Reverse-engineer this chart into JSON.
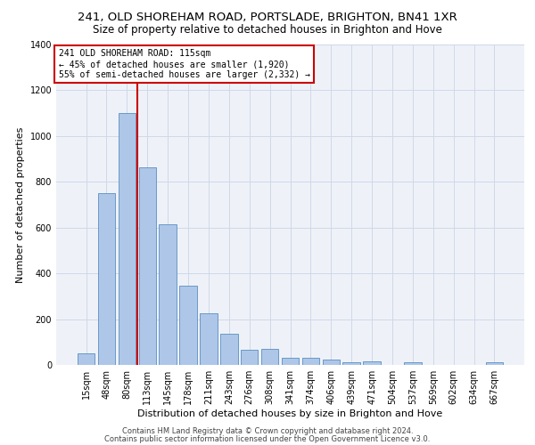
{
  "title1": "241, OLD SHOREHAM ROAD, PORTSLADE, BRIGHTON, BN41 1XR",
  "title2": "Size of property relative to detached houses in Brighton and Hove",
  "xlabel": "Distribution of detached houses by size in Brighton and Hove",
  "ylabel": "Number of detached properties",
  "footer1": "Contains HM Land Registry data © Crown copyright and database right 2024.",
  "footer2": "Contains public sector information licensed under the Open Government Licence v3.0.",
  "bar_labels": [
    "15sqm",
    "48sqm",
    "80sqm",
    "113sqm",
    "145sqm",
    "178sqm",
    "211sqm",
    "243sqm",
    "276sqm",
    "308sqm",
    "341sqm",
    "374sqm",
    "406sqm",
    "439sqm",
    "471sqm",
    "504sqm",
    "537sqm",
    "569sqm",
    "602sqm",
    "634sqm",
    "667sqm"
  ],
  "bar_values": [
    50,
    750,
    1100,
    865,
    615,
    345,
    225,
    135,
    65,
    70,
    30,
    32,
    22,
    12,
    15,
    0,
    12,
    0,
    0,
    0,
    12
  ],
  "bar_color": "#aec6e8",
  "bar_edge_color": "#5a8fc2",
  "red_line_x": 3,
  "annotation_text1": "241 OLD SHOREHAM ROAD: 115sqm",
  "annotation_text2": "← 45% of detached houses are smaller (1,920)",
  "annotation_text3": "55% of semi-detached houses are larger (2,332) →",
  "annotation_box_color": "#ffffff",
  "annotation_box_edge_color": "#cc0000",
  "red_line_color": "#cc0000",
  "ylim": [
    0,
    1400
  ],
  "yticks": [
    0,
    200,
    400,
    600,
    800,
    1000,
    1200,
    1400
  ],
  "grid_color": "#d0d8e8",
  "bg_color": "#eef2f8",
  "title1_fontsize": 9.5,
  "title2_fontsize": 8.5,
  "xlabel_fontsize": 8,
  "ylabel_fontsize": 8,
  "tick_fontsize": 7,
  "annotation_fontsize": 7,
  "footer_fontsize": 6
}
